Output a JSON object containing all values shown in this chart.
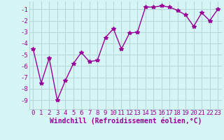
{
  "x": [
    0,
    1,
    2,
    3,
    4,
    5,
    6,
    7,
    8,
    9,
    10,
    11,
    12,
    13,
    14,
    15,
    16,
    17,
    18,
    19,
    20,
    21,
    22,
    23
  ],
  "y": [
    -4.5,
    -7.5,
    -5.3,
    -9.0,
    -7.3,
    -5.8,
    -4.8,
    -5.6,
    -5.5,
    -3.5,
    -2.7,
    -4.5,
    -3.1,
    -3.0,
    -0.8,
    -0.8,
    -0.7,
    -0.8,
    -1.1,
    -1.5,
    -2.5,
    -1.3,
    -2.0,
    -1.0
  ],
  "color": "#990099",
  "marker": "*",
  "markersize": 4,
  "linewidth": 1.0,
  "xlabel": "Windchill (Refroidissement éolien,°C)",
  "xlim": [
    -0.5,
    23.5
  ],
  "ylim": [
    -9.8,
    -0.3
  ],
  "yticks": [
    -9,
    -8,
    -7,
    -6,
    -5,
    -4,
    -3,
    -2,
    -1
  ],
  "xticks": [
    0,
    1,
    2,
    3,
    4,
    5,
    6,
    7,
    8,
    9,
    10,
    11,
    12,
    13,
    14,
    15,
    16,
    17,
    18,
    19,
    20,
    21,
    22,
    23
  ],
  "bg_color": "#d6f5f5",
  "grid_color": "#b8d8d8",
  "tick_label_color": "#990099",
  "xlabel_color": "#990099",
  "xlabel_fontsize": 7,
  "tick_fontsize": 6.5
}
